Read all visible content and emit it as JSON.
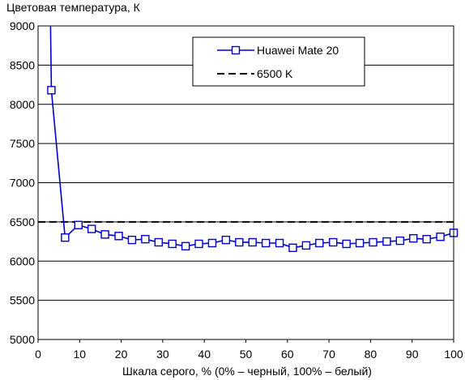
{
  "chart_data": {
    "type": "line",
    "ylabel": "Цветовая температура, К",
    "xlabel": "Шкала серого, % (0% – черный, 100% – белый)",
    "xlim": [
      0,
      100
    ],
    "ylim": [
      5000,
      9000
    ],
    "x_ticks": [
      "0",
      "10",
      "20",
      "30",
      "40",
      "50",
      "60",
      "70",
      "80",
      "90",
      "100"
    ],
    "y_ticks": [
      "5000",
      "5500",
      "6000",
      "6500",
      "7000",
      "7500",
      "8000",
      "8500",
      "9000"
    ],
    "grid": "horizontal",
    "legend_position": "top-right",
    "series": [
      {
        "name": "Huawei Mate 20",
        "color": "#0000cc",
        "marker": "square",
        "x": [
          3.2,
          6.5,
          9.7,
          12.9,
          16.1,
          19.4,
          22.6,
          25.8,
          29.0,
          32.3,
          35.5,
          38.7,
          41.9,
          45.2,
          48.4,
          51.6,
          54.8,
          58.1,
          61.3,
          64.5,
          67.7,
          71.0,
          74.2,
          77.4,
          80.6,
          83.9,
          87.1,
          90.3,
          93.5,
          96.8,
          100
        ],
        "y": [
          8180,
          6300,
          6460,
          6410,
          6340,
          6320,
          6270,
          6280,
          6240,
          6220,
          6190,
          6220,
          6230,
          6270,
          6240,
          6240,
          6230,
          6230,
          6170,
          6200,
          6230,
          6240,
          6220,
          6230,
          6240,
          6250,
          6260,
          6290,
          6280,
          6310,
          6360
        ],
        "line_start": {
          "x": 3.0,
          "y": 9000
        }
      },
      {
        "name": "6500 K",
        "color": "#000000",
        "style": "dashed",
        "value": 6500
      }
    ]
  }
}
